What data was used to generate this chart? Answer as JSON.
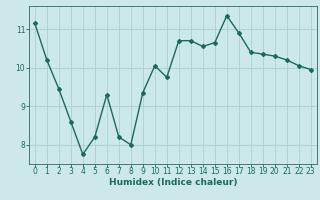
{
  "xlabel": "Humidex (Indice chaleur)",
  "x": [
    0,
    1,
    2,
    3,
    4,
    5,
    6,
    7,
    8,
    9,
    10,
    11,
    12,
    13,
    14,
    15,
    16,
    17,
    18,
    19,
    20,
    21,
    22,
    23
  ],
  "y": [
    11.15,
    10.2,
    9.45,
    8.6,
    7.75,
    8.2,
    9.3,
    8.2,
    8.0,
    9.35,
    10.05,
    9.75,
    10.7,
    10.7,
    10.55,
    10.65,
    11.35,
    10.9,
    10.4,
    10.35,
    10.3,
    10.2,
    10.05,
    9.95
  ],
  "line_color": "#1a6b5a",
  "marker": "D",
  "marker_size": 2.0,
  "bg_color": "#cce8e8",
  "grid_color": "#aacfcf",
  "axis_color": "#336666",
  "tick_color": "#1a6b5a",
  "label_color": "#1a6b5a",
  "ylim": [
    7.5,
    11.6
  ],
  "yticks": [
    8,
    9,
    10,
    11
  ],
  "xlim": [
    -0.5,
    23.5
  ],
  "xticks": [
    0,
    1,
    2,
    3,
    4,
    5,
    6,
    7,
    8,
    9,
    10,
    11,
    12,
    13,
    14,
    15,
    16,
    17,
    18,
    19,
    20,
    21,
    22,
    23
  ],
  "xlabel_fontsize": 6.5,
  "tick_fontsize": 5.5,
  "linewidth": 1.0
}
